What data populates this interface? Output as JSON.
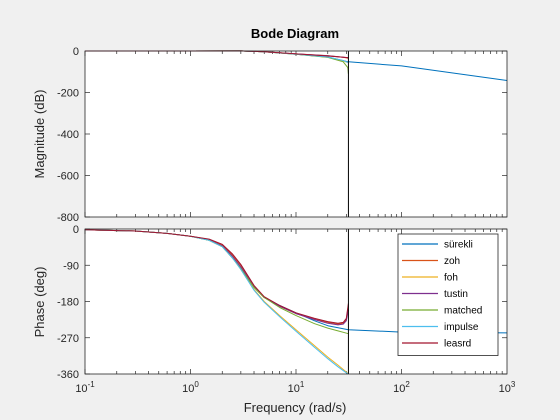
{
  "chart_data": {
    "type": "line",
    "title": "Bode Diagram",
    "xlabel": "Frequency  (rad/s)",
    "xscale": "log",
    "xlim": [
      0.1,
      1000
    ],
    "x_ticks": [
      0.1,
      1,
      10,
      100,
      1000
    ],
    "x_tick_labels": [
      {
        "base": "10",
        "exp": "-1"
      },
      {
        "base": "10",
        "exp": "0"
      },
      {
        "base": "10",
        "exp": "1"
      },
      {
        "base": "10",
        "exp": "2"
      },
      {
        "base": "10",
        "exp": "3"
      }
    ],
    "nyquist_frequency": 31.4,
    "colors": {
      "sürekli": "#0072bd",
      "zoh": "#d95319",
      "foh": "#edb120",
      "tustin": "#7e2f8e",
      "matched": "#77ac30",
      "impulse": "#4dbeee",
      "leasrd": "#a2142f"
    },
    "legend": {
      "placement": "inside-bottom-right (phase panel)",
      "entries": [
        "sürekli",
        "zoh",
        "foh",
        "tustin",
        "matched",
        "impulse",
        "leasrd"
      ]
    },
    "magnitude": {
      "ylabel": "Magnitude (dB)",
      "ylim": [
        -800,
        0
      ],
      "y_ticks": [
        0,
        -200,
        -400,
        -600,
        -800
      ],
      "y_tick_labels": [
        "0",
        "-200",
        "-400",
        "-600",
        "-800"
      ],
      "series": [
        {
          "name": "sürekli",
          "x": [
            0.1,
            1,
            3,
            5,
            10,
            20,
            31.4,
            100,
            1000
          ],
          "y": [
            0,
            0,
            0.5,
            -4,
            -16,
            -29,
            -52,
            -72,
            -142
          ]
        },
        {
          "name": "zoh",
          "x": [
            0.1,
            1,
            3,
            5,
            10,
            20,
            28,
            31.4
          ],
          "y": [
            0,
            0,
            0.5,
            -4,
            -14,
            -22,
            -30,
            -35
          ]
        },
        {
          "name": "foh",
          "x": [
            0.1,
            1,
            3,
            5,
            10,
            20,
            28,
            31.4
          ],
          "y": [
            0,
            0,
            0.5,
            -4,
            -15,
            -30,
            -48,
            -56
          ]
        },
        {
          "name": "tustin",
          "x": [
            0.1,
            1,
            3,
            5,
            10,
            20,
            28,
            31.4
          ],
          "y": [
            0,
            0,
            0.5,
            -4,
            -14,
            -23,
            -30,
            -32
          ]
        },
        {
          "name": "matched",
          "x": [
            0.1,
            1,
            3,
            5,
            10,
            20,
            28,
            31,
            31.4
          ],
          "y": [
            0,
            0,
            0.5,
            -4,
            -16,
            -31,
            -52,
            -80,
            -110
          ]
        },
        {
          "name": "impulse",
          "x": [
            0.1,
            1,
            3,
            5,
            10,
            20,
            28,
            31.4
          ],
          "y": [
            0,
            0,
            0.5,
            -4,
            -15,
            -29,
            -46,
            -56
          ]
        },
        {
          "name": "leasrd",
          "x": [
            0.1,
            1,
            3,
            5,
            10,
            20,
            28,
            31.4
          ],
          "y": [
            0,
            0,
            0.5,
            -4,
            -14,
            -24,
            -30,
            -33
          ]
        }
      ]
    },
    "phase": {
      "ylabel": "Phase (deg)",
      "ylim": [
        -360,
        0
      ],
      "y_ticks": [
        0,
        -90,
        -180,
        -270,
        -360
      ],
      "y_tick_labels": [
        "0",
        "-90",
        "-180",
        "-270",
        "-360"
      ],
      "series": [
        {
          "name": "sürekli",
          "x": [
            0.1,
            0.3,
            0.6,
            1,
            1.5,
            2,
            2.5,
            3,
            4,
            5,
            7,
            10,
            15,
            20,
            31.4,
            100,
            1000
          ],
          "y": [
            -2,
            -5,
            -11,
            -18,
            -28,
            -44,
            -72,
            -98,
            -145,
            -170,
            -190,
            -208,
            -228,
            -240,
            -250,
            -256,
            -258
          ]
        },
        {
          "name": "zoh",
          "x": [
            0.1,
            0.3,
            0.6,
            1,
            1.5,
            2,
            2.5,
            3,
            4,
            5,
            7,
            10,
            15,
            20,
            25,
            28,
            30,
            31.4
          ],
          "y": [
            -2,
            -5,
            -11,
            -18,
            -26,
            -40,
            -65,
            -90,
            -142,
            -170,
            -192,
            -210,
            -224,
            -232,
            -236,
            -234,
            -225,
            -190
          ]
        },
        {
          "name": "foh",
          "x": [
            0.1,
            0.3,
            0.6,
            1,
            1.5,
            2,
            2.5,
            3,
            4,
            5,
            7,
            10,
            15,
            20,
            25,
            30,
            31.4
          ],
          "y": [
            -2,
            -5,
            -11,
            -18,
            -28,
            -44,
            -72,
            -100,
            -150,
            -180,
            -215,
            -250,
            -290,
            -318,
            -338,
            -355,
            -360
          ]
        },
        {
          "name": "tustin",
          "x": [
            0.1,
            0.3,
            0.6,
            1,
            1.5,
            2,
            2.5,
            3,
            4,
            5,
            7,
            10,
            15,
            20,
            25,
            28,
            30,
            31.4
          ],
          "y": [
            -2,
            -5,
            -11,
            -18,
            -27,
            -42,
            -68,
            -94,
            -143,
            -170,
            -192,
            -210,
            -225,
            -234,
            -238,
            -236,
            -228,
            -200
          ]
        },
        {
          "name": "matched",
          "x": [
            0.1,
            0.3,
            0.6,
            1,
            1.5,
            2,
            2.5,
            3,
            4,
            5,
            7,
            10,
            15,
            20,
            25,
            31.4
          ],
          "y": [
            -2,
            -5,
            -11,
            -18,
            -28,
            -44,
            -72,
            -98,
            -145,
            -170,
            -195,
            -215,
            -235,
            -246,
            -253,
            -260
          ]
        },
        {
          "name": "impulse",
          "x": [
            0.1,
            0.3,
            0.6,
            1,
            1.5,
            2,
            2.5,
            3,
            4,
            5,
            7,
            10,
            15,
            20,
            25,
            30,
            31.4
          ],
          "y": [
            -2,
            -5,
            -11,
            -18,
            -28,
            -44,
            -72,
            -100,
            -152,
            -182,
            -218,
            -254,
            -294,
            -322,
            -342,
            -357,
            -360
          ]
        },
        {
          "name": "leasrd",
          "x": [
            0.1,
            0.3,
            0.6,
            1,
            1.5,
            2,
            2.5,
            3,
            4,
            5,
            7,
            10,
            15,
            20,
            25,
            28,
            30,
            31.4
          ],
          "y": [
            -2,
            -5,
            -11,
            -18,
            -25,
            -38,
            -62,
            -88,
            -140,
            -168,
            -190,
            -208,
            -222,
            -230,
            -234,
            -232,
            -222,
            -185
          ]
        }
      ]
    }
  }
}
